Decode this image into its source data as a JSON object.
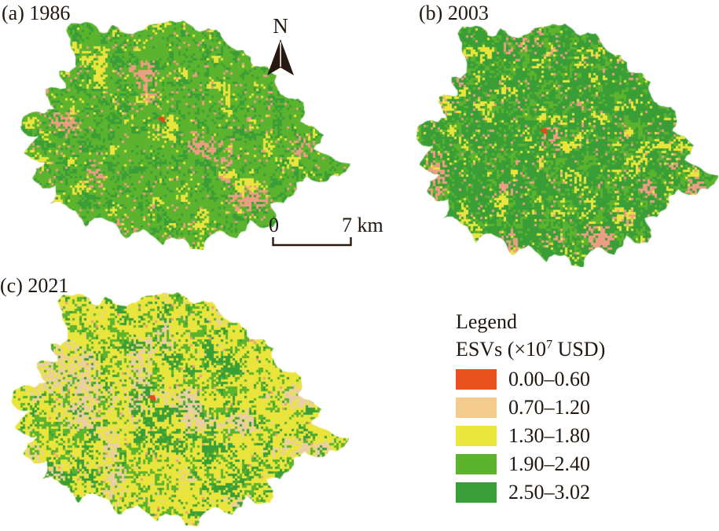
{
  "figure": {
    "background": "#ffffff",
    "text_color": "#20170f",
    "panels": [
      {
        "id": "a",
        "label": "(a) 1986",
        "year": "1986"
      },
      {
        "id": "b",
        "label": "(b) 2003",
        "year": "2003"
      },
      {
        "id": "c",
        "label": "(c) 2021",
        "year": "2021"
      }
    ],
    "north_arrow_label": "N",
    "scale_bar": {
      "zero_label": "0",
      "end_label": "7 km"
    },
    "legend": {
      "title": "Legend",
      "units_prefix": "ESVs (×10",
      "units_superscript": "7",
      "units_suffix": " USD)",
      "items": [
        {
          "label": "0.00–0.60",
          "color": "#e8511d"
        },
        {
          "label": "0.70–1.20",
          "color": "#f3cc8e"
        },
        {
          "label": "1.30–1.80",
          "color": "#ebe73d"
        },
        {
          "label": "1.90–2.40",
          "color": "#5cb32e"
        },
        {
          "label": "2.50–3.02",
          "color": "#3a9e38"
        }
      ]
    },
    "map_render": {
      "palette": {
        "mediumGreen": "#5cb32e",
        "darkGreen": "#3a9e37",
        "yellow": "#e9e53c",
        "salmon": "#eb9e83",
        "tan": "#e9cfa1",
        "red": "#e5491a"
      },
      "panels": {
        "a": {
          "seed": 11,
          "base": "mediumGreen",
          "layers": [
            {
              "c": "darkGreen",
              "n": 2,
              "t": 0.52,
              "d": 0.85
            },
            {
              "c": "yellow",
              "n": 1,
              "t": 0.6,
              "d": 0.9
            },
            {
              "c": "salmon",
              "n": 0,
              "t": 0.66,
              "d": 0.85
            }
          ],
          "speckle": [
            {
              "c": "darkGreen",
              "d": 0.1
            },
            {
              "c": "yellow",
              "d": 0.03
            },
            {
              "c": "salmon",
              "d": 0.045
            }
          ],
          "red_dot": [
            0.43,
            0.42
          ]
        },
        "b": {
          "seed": 22,
          "base": "darkGreen",
          "layers": [
            {
              "c": "mediumGreen",
              "n": 2,
              "t": 0.5,
              "d": 0.9
            },
            {
              "c": "yellow",
              "n": 1,
              "t": 0.63,
              "d": 0.85
            },
            {
              "c": "salmon",
              "n": 0,
              "t": 0.64,
              "d": 0.85
            }
          ],
          "speckle": [
            {
              "c": "mediumGreen",
              "d": 0.09
            },
            {
              "c": "yellow",
              "d": 0.035
            },
            {
              "c": "salmon",
              "d": 0.05
            }
          ],
          "red_dot": [
            0.425,
            0.43
          ]
        },
        "c": {
          "seed": 33,
          "base": "yellow",
          "layers": [
            {
              "c": "mediumGreen",
              "n": 2,
              "t": 0.5,
              "d": 0.85
            },
            {
              "c": "darkGreen",
              "n": 1,
              "t": 0.58,
              "d": 0.9
            },
            {
              "c": "tan",
              "n": 0,
              "t": 0.68,
              "d": 0.85
            }
          ],
          "speckle": [
            {
              "c": "mediumGreen",
              "d": 0.1
            },
            {
              "c": "darkGreen",
              "d": 0.05
            },
            {
              "c": "tan",
              "d": 0.02
            },
            {
              "c": "salmon",
              "d": 0.015
            }
          ],
          "red_dot": [
            0.42,
            0.44
          ]
        }
      }
    }
  }
}
